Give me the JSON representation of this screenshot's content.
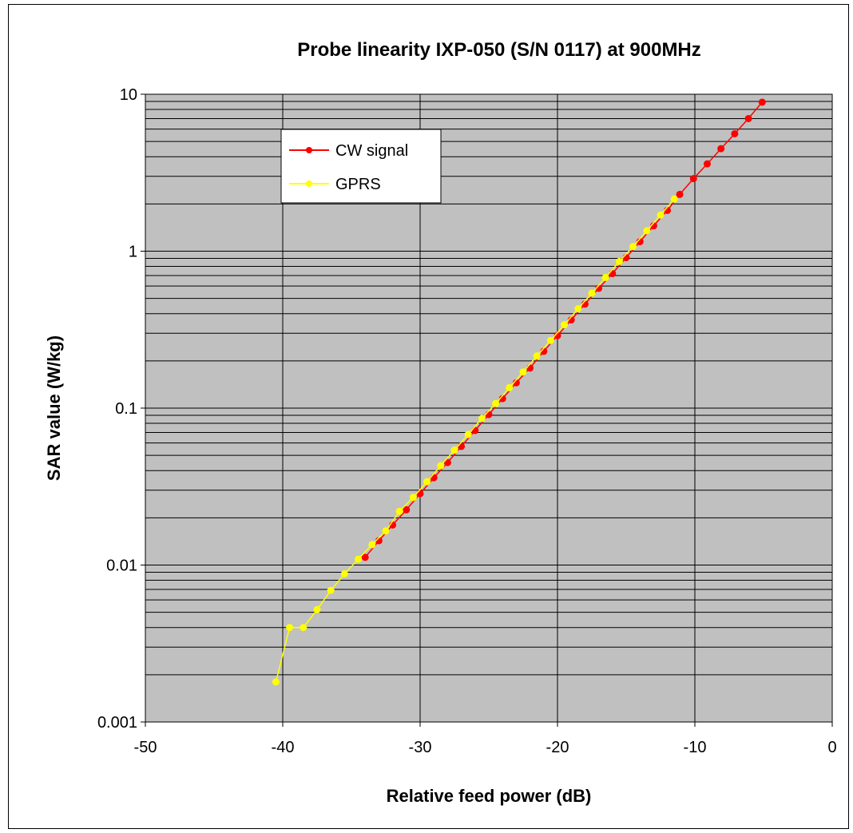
{
  "chart_data": {
    "type": "line",
    "title": "Probe linearity IXP-050 (S/N 0117) at 900MHz",
    "xlabel": "Relative feed power (dB)",
    "ylabel": "SAR value (W/kg)",
    "xlim": [
      -50,
      0
    ],
    "ylim": [
      0.001,
      10
    ],
    "yscale": "log",
    "x_ticks": [
      "-50",
      "-40",
      "-30",
      "-20",
      "-10",
      "0"
    ],
    "y_ticks": [
      "0.001",
      "0.01",
      "0.1",
      "1",
      "10"
    ],
    "grid": true,
    "legend_position": "top-left",
    "plot_background": "#c0c0c0",
    "series": [
      {
        "name": "CW signal",
        "color": "#ff0000",
        "x": [
          -5.1,
          -6.1,
          -7.1,
          -8.1,
          -9.1,
          -10.1,
          -11.1,
          -12.0,
          -13.0,
          -14.0,
          -15.0,
          -16.0,
          -17.0,
          -18.0,
          -19.0,
          -20.0,
          -21.0,
          -22.0,
          -23.0,
          -24.0,
          -25.0,
          -26.0,
          -27.0,
          -28.0,
          -29.0,
          -30.0,
          -31.0,
          -32.0,
          -33.0,
          -34.0
        ],
        "y": [
          8.9,
          7.0,
          5.6,
          4.5,
          3.6,
          2.9,
          2.3,
          1.82,
          1.45,
          1.15,
          0.91,
          0.72,
          0.58,
          0.46,
          0.365,
          0.29,
          0.23,
          0.18,
          0.145,
          0.115,
          0.091,
          0.072,
          0.057,
          0.045,
          0.036,
          0.0285,
          0.0225,
          0.018,
          0.0143,
          0.0112
        ]
      },
      {
        "name": "GPRS",
        "color": "#ffff00",
        "x": [
          -11.5,
          -12.5,
          -13.5,
          -14.5,
          -15.5,
          -16.5,
          -17.5,
          -18.5,
          -19.5,
          -20.5,
          -21.5,
          -22.5,
          -23.5,
          -24.5,
          -25.5,
          -26.5,
          -27.5,
          -28.5,
          -29.5,
          -30.5,
          -31.5,
          -32.5,
          -33.5,
          -34.5,
          -35.5,
          -36.5,
          -37.5,
          -38.5,
          -39.5,
          -40.5
        ],
        "y": [
          2.15,
          1.7,
          1.35,
          1.07,
          0.86,
          0.68,
          0.54,
          0.43,
          0.34,
          0.27,
          0.215,
          0.17,
          0.135,
          0.107,
          0.086,
          0.068,
          0.054,
          0.043,
          0.034,
          0.027,
          0.022,
          0.0165,
          0.0135,
          0.0109,
          0.0088,
          0.0069,
          0.0052,
          0.004,
          0.004,
          0.0018
        ]
      }
    ]
  }
}
